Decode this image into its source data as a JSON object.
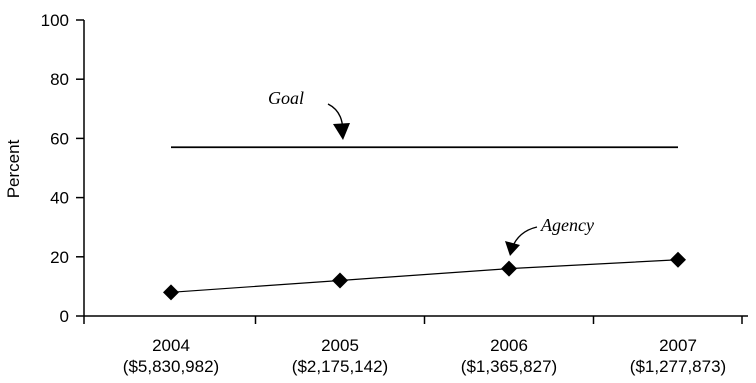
{
  "chart_data": {
    "type": "line",
    "title": "",
    "xlabel": "",
    "ylabel": "Percent",
    "ylim": [
      0,
      100
    ],
    "yticks": [
      0,
      20,
      40,
      60,
      80,
      100
    ],
    "categories": [
      {
        "year": "2004",
        "amount": "($5,830,982)"
      },
      {
        "year": "2005",
        "amount": "($2,175,142)"
      },
      {
        "year": "2006",
        "amount": "($1,365,827)"
      },
      {
        "year": "2007",
        "amount": "($1,277,873)"
      }
    ],
    "series": [
      {
        "name": "Agency",
        "values": [
          8,
          12,
          16,
          19
        ],
        "marker": "diamond",
        "color": "#000000"
      }
    ],
    "goal": {
      "label": "Goal",
      "value": 57
    },
    "grid": false,
    "legend": "none"
  }
}
